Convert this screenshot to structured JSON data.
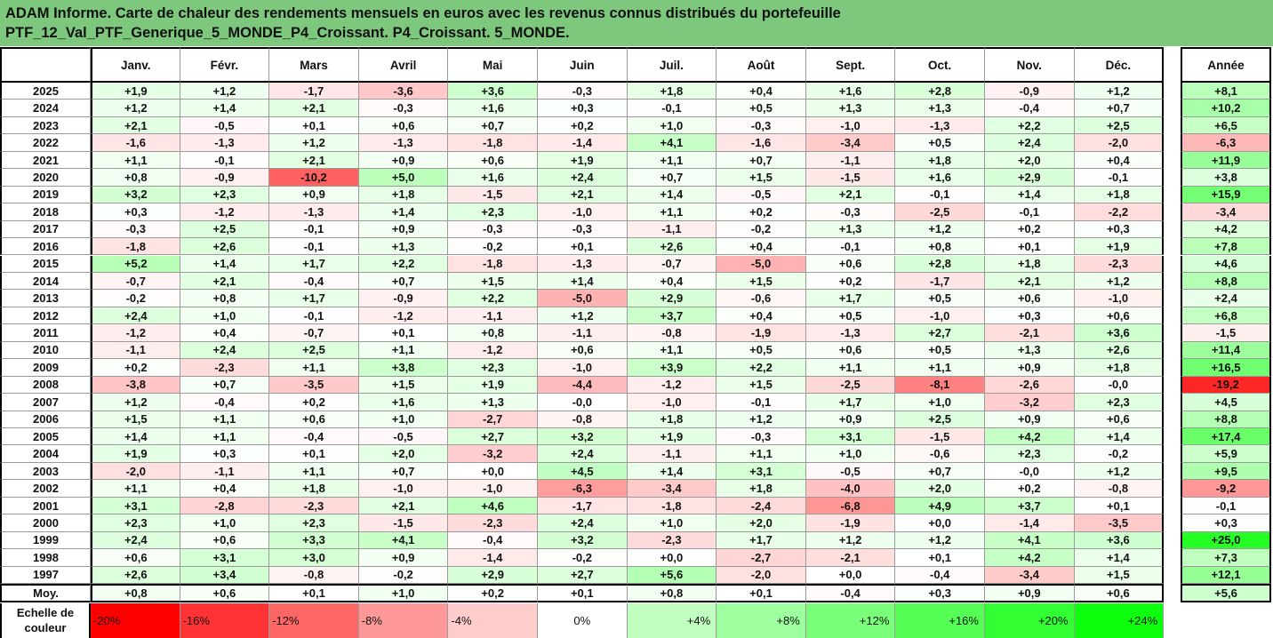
{
  "title_line1": "ADAM Informe. Carte de chaleur des rendements mensuels en euros avec les revenus connus distribués du portefeuille",
  "title_line2": "PTF_12_Val_PTF_Generique_5_MONDE_P4_Croissant. P4_Croissant. 5_MONDE.",
  "corner_text": "",
  "watermark_text": "",
  "chart_data": {
    "type": "heatmap",
    "title": "ADAM Informe. Carte de chaleur des rendements mensuels en euros avec les revenus connus distribués du portefeuille PTF_12_Val_PTF_Generique_5_MONDE_P4_Croissant. P4_Croissant. 5_MONDE.",
    "columns": [
      "Janv.",
      "Févr.",
      "Mars",
      "Avril",
      "Mai",
      "Juin",
      "Juil.",
      "Août",
      "Sept.",
      "Oct.",
      "Nov.",
      "Déc."
    ],
    "year_column": "Année",
    "rows": [
      {
        "year": "2025",
        "values": [
          "+1,9",
          "+1,2",
          "-1,7",
          "-3,6",
          "+3,6",
          "-0,3",
          "+1,8",
          "+0,4",
          "+1,6",
          "+2,8",
          "-0,9",
          "+1,2"
        ],
        "annual": "+8,1"
      },
      {
        "year": "2024",
        "values": [
          "+1,2",
          "+1,4",
          "+2,1",
          "-0,3",
          "+1,6",
          "+0,3",
          "-0,1",
          "+0,5",
          "+1,3",
          "+1,3",
          "-0,4",
          "+0,7"
        ],
        "annual": "+10,2"
      },
      {
        "year": "2023",
        "values": [
          "+2,1",
          "-0,5",
          "+0,1",
          "+0,6",
          "+0,7",
          "+0,2",
          "+1,0",
          "-0,3",
          "-1,0",
          "-1,3",
          "+2,2",
          "+2,5"
        ],
        "annual": "+6,5"
      },
      {
        "year": "2022",
        "values": [
          "-1,6",
          "-1,3",
          "+1,2",
          "-1,3",
          "-1,8",
          "-1,4",
          "+4,1",
          "-1,6",
          "-3,4",
          "+0,5",
          "+2,4",
          "-2,0"
        ],
        "annual": "-6,3"
      },
      {
        "year": "2021",
        "values": [
          "+1,1",
          "-0,1",
          "+2,1",
          "+0,9",
          "+0,6",
          "+1,9",
          "+1,1",
          "+0,7",
          "-1,1",
          "+1,8",
          "+2,0",
          "+0,4"
        ],
        "annual": "+11,9"
      },
      {
        "year": "2020",
        "values": [
          "+0,8",
          "-0,9",
          "-10,2",
          "+5,0",
          "+1,6",
          "+2,4",
          "+0,7",
          "+1,5",
          "-1,5",
          "+1,6",
          "+2,9",
          "-0,1"
        ],
        "annual": "+3,8"
      },
      {
        "year": "2019",
        "values": [
          "+3,2",
          "+2,3",
          "+0,9",
          "+1,8",
          "-1,5",
          "+2,1",
          "+1,4",
          "-0,5",
          "+2,1",
          "-0,1",
          "+1,4",
          "+1,8"
        ],
        "annual": "+15,9"
      },
      {
        "year": "2018",
        "values": [
          "+0,3",
          "-1,2",
          "-1,3",
          "+1,4",
          "+2,3",
          "-1,0",
          "+1,1",
          "+0,2",
          "-0,3",
          "-2,5",
          "-0,1",
          "-2,2"
        ],
        "annual": "-3,4"
      },
      {
        "year": "2017",
        "values": [
          "-0,3",
          "+2,5",
          "-0,1",
          "+0,9",
          "-0,3",
          "-0,3",
          "-1,1",
          "-0,2",
          "+1,3",
          "+1,2",
          "+0,2",
          "+0,3"
        ],
        "annual": "+4,2"
      },
      {
        "year": "2016",
        "values": [
          "-1,8",
          "+2,6",
          "-0,1",
          "+1,3",
          "-0,2",
          "+0,1",
          "+2,6",
          "+0,4",
          "-0,1",
          "+0,8",
          "+0,1",
          "+1,9"
        ],
        "annual": "+7,8"
      },
      {
        "year": "2015",
        "values": [
          "+5,2",
          "+1,4",
          "+1,7",
          "+2,2",
          "-1,8",
          "-1,3",
          "-0,7",
          "-5,0",
          "+0,6",
          "+2,8",
          "+1,8",
          "-2,3"
        ],
        "annual": "+4,6"
      },
      {
        "year": "2014",
        "values": [
          "-0,7",
          "+2,1",
          "-0,4",
          "+0,7",
          "+1,5",
          "+1,4",
          "+0,4",
          "+1,5",
          "+0,2",
          "-1,7",
          "+2,1",
          "+1,2"
        ],
        "annual": "+8,8"
      },
      {
        "year": "2013",
        "values": [
          "-0,2",
          "+0,8",
          "+1,7",
          "-0,9",
          "+2,2",
          "-5,0",
          "+2,9",
          "-0,6",
          "+1,7",
          "+0,5",
          "+0,6",
          "-1,0"
        ],
        "annual": "+2,4"
      },
      {
        "year": "2012",
        "values": [
          "+2,4",
          "+1,0",
          "-0,1",
          "-1,2",
          "-1,1",
          "+1,2",
          "+3,7",
          "+0,4",
          "+0,5",
          "-1,0",
          "+0,3",
          "+0,6"
        ],
        "annual": "+6,8"
      },
      {
        "year": "2011",
        "values": [
          "-1,2",
          "+0,4",
          "-0,7",
          "+0,1",
          "+0,8",
          "-1,1",
          "-0,8",
          "-1,9",
          "-1,3",
          "+2,7",
          "-2,1",
          "+3,6"
        ],
        "annual": "-1,5"
      },
      {
        "year": "2010",
        "values": [
          "-1,1",
          "+2,4",
          "+2,5",
          "+1,1",
          "-1,2",
          "+0,6",
          "+1,1",
          "+0,5",
          "+0,6",
          "+0,5",
          "+1,3",
          "+2,6"
        ],
        "annual": "+11,4"
      },
      {
        "year": "2009",
        "values": [
          "+0,2",
          "-2,3",
          "+1,1",
          "+3,8",
          "+2,3",
          "-1,0",
          "+3,9",
          "+2,2",
          "+1,1",
          "+1,1",
          "+0,9",
          "+1,8"
        ],
        "annual": "+16,5"
      },
      {
        "year": "2008",
        "values": [
          "-3,8",
          "+0,7",
          "-3,5",
          "+1,5",
          "+1,9",
          "-4,4",
          "-1,2",
          "+1,5",
          "-2,5",
          "-8,1",
          "-2,6",
          "-0,0"
        ],
        "annual": "-19,2"
      },
      {
        "year": "2007",
        "values": [
          "+1,2",
          "-0,4",
          "+0,2",
          "+1,6",
          "+1,3",
          "-0,0",
          "-1,0",
          "-0,1",
          "+1,7",
          "+1,0",
          "-3,2",
          "+2,3"
        ],
        "annual": "+4,5"
      },
      {
        "year": "2006",
        "values": [
          "+1,5",
          "+1,1",
          "+0,6",
          "+1,0",
          "-2,7",
          "-0,8",
          "+1,8",
          "+1,2",
          "+0,9",
          "+2,5",
          "+0,9",
          "+0,6"
        ],
        "annual": "+8,8"
      },
      {
        "year": "2005",
        "values": [
          "+1,4",
          "+1,1",
          "-0,4",
          "-0,5",
          "+2,7",
          "+3,2",
          "+1,9",
          "-0,3",
          "+3,1",
          "-1,5",
          "+4,2",
          "+1,4"
        ],
        "annual": "+17,4"
      },
      {
        "year": "2004",
        "values": [
          "+1,9",
          "+0,3",
          "+0,1",
          "+2,0",
          "-3,2",
          "+2,4",
          "-1,1",
          "+1,1",
          "+1,0",
          "-0,6",
          "+2,3",
          "-0,2"
        ],
        "annual": "+5,9"
      },
      {
        "year": "2003",
        "values": [
          "-2,0",
          "-1,1",
          "+1,1",
          "+0,7",
          "+0,0",
          "+4,5",
          "+1,4",
          "+3,1",
          "-0,5",
          "+0,7",
          "-0,0",
          "+1,2"
        ],
        "annual": "+9,5"
      },
      {
        "year": "2002",
        "values": [
          "+1,1",
          "+0,4",
          "+1,8",
          "-1,0",
          "-1,0",
          "-6,3",
          "-3,4",
          "+1,8",
          "-4,0",
          "+2,0",
          "+0,2",
          "-0,8"
        ],
        "annual": "-9,2"
      },
      {
        "year": "2001",
        "values": [
          "+3,1",
          "-2,8",
          "-2,3",
          "+2,1",
          "+4,6",
          "-1,7",
          "-1,8",
          "-2,4",
          "-6,8",
          "+4,9",
          "+3,7",
          "+0,1"
        ],
        "annual": "-0,1"
      },
      {
        "year": "2000",
        "values": [
          "+2,3",
          "+1,0",
          "+2,3",
          "-1,5",
          "-2,3",
          "+2,4",
          "+1,0",
          "+2,0",
          "-1,9",
          "+0,0",
          "-1,4",
          "-3,5"
        ],
        "annual": "+0,3"
      },
      {
        "year": "1999",
        "values": [
          "+2,4",
          "+0,6",
          "+3,3",
          "+4,1",
          "-0,4",
          "+3,2",
          "-2,3",
          "+1,7",
          "+1,2",
          "+1,2",
          "+4,1",
          "+3,6"
        ],
        "annual": "+25,0"
      },
      {
        "year": "1998",
        "values": [
          "+0,6",
          "+3,1",
          "+3,0",
          "+0,9",
          "-1,4",
          "-0,2",
          "+0,0",
          "-2,7",
          "-2,1",
          "+0,1",
          "+4,2",
          "+1,4"
        ],
        "annual": "+7,3"
      },
      {
        "year": "1997",
        "values": [
          "+2,6",
          "+3,4",
          "-0,8",
          "-0,2",
          "+2,9",
          "+2,7",
          "+5,6",
          "-2,0",
          "+0,0",
          "-0,4",
          "-3,4",
          "+1,5"
        ],
        "annual": "+12,1"
      }
    ],
    "average": {
      "label": "Moy.",
      "values": [
        "+0,8",
        "+0,6",
        "+0,1",
        "+1,0",
        "+0,2",
        "+0,1",
        "+0,8",
        "+0,1",
        "-0,4",
        "+0,3",
        "+0,9",
        "+0,6"
      ],
      "annual": "+5,6"
    },
    "scale": {
      "label_line1": "Echelle de",
      "label_line2": "couleur",
      "labels": [
        "-20%",
        "-16%",
        "-12%",
        "-8%",
        "-4%",
        "0%",
        "+4%",
        "+8%",
        "+12%",
        "+16%",
        "+20%",
        "+24%"
      ],
      "values": [
        -20,
        -16,
        -12,
        -8,
        -4,
        0,
        4,
        8,
        12,
        16,
        20,
        24
      ]
    },
    "color_range": {
      "min": -20,
      "max": 24
    },
    "colors": {
      "negative": "#ff0000",
      "positive": "#00ff00",
      "neutral": "#ffffff",
      "title_band": "#7ec87e"
    }
  }
}
